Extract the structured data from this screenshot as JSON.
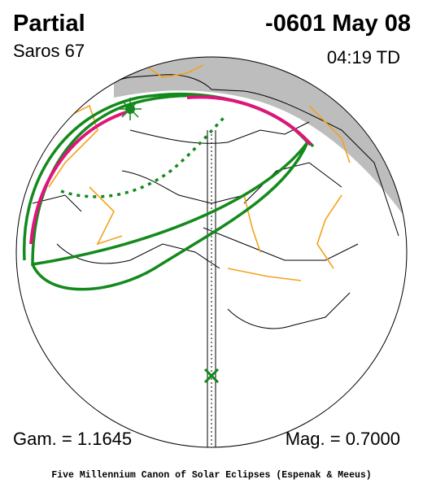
{
  "header": {
    "title": "Partial",
    "date": "-0601 May 08",
    "saros": "Saros  67",
    "time": "04:19 TD"
  },
  "footer": {
    "gamma": "Gam. = 1.1645",
    "magnitude": "Mag. = 0.7000",
    "credit": "Five Millennium Canon of Solar Eclipses (Espenak & Meeus)"
  }
}
